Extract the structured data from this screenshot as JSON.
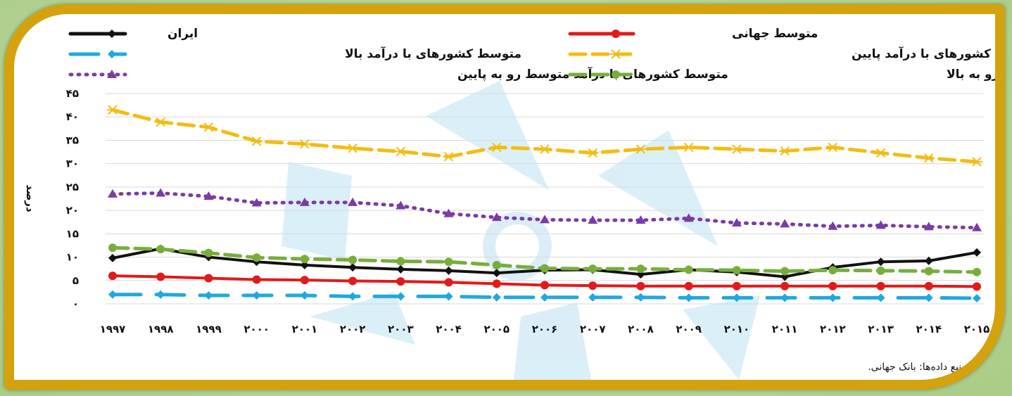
{
  "source_note": "منبع داده‌ها: بانک جهانی.",
  "chart_data": {
    "type": "line",
    "ylabel": "درصد",
    "xlabel": "",
    "ylim": [
      0,
      45
    ],
    "yticks": [
      "۰",
      "۵",
      "۱۰",
      "۱۵",
      "۲۰",
      "۲۵",
      "۳۰",
      "۳۵",
      "۴۰",
      "۴۵"
    ],
    "x": [
      "۱۹۹۷",
      "۱۹۹۸",
      "۱۹۹۹",
      "۲۰۰۰",
      "۲۰۰۱",
      "۲۰۰۲",
      "۲۰۰۳",
      "۲۰۰۴",
      "۲۰۰۵",
      "۲۰۰۶",
      "۲۰۰۷",
      "۲۰۰۸",
      "۲۰۰۹",
      "۲۰۱۰",
      "۲۰۱۱",
      "۲۰۱۲",
      "۲۰۱۳",
      "۲۰۱۴",
      "۲۰۱۵"
    ],
    "grid": true,
    "legend_position": "top",
    "series": [
      {
        "name": "ایران",
        "color": "#111111",
        "marker": "diamond",
        "dash": "solid",
        "values": [
          9.8,
          11.8,
          10.0,
          9.0,
          8.3,
          7.8,
          7.4,
          7.1,
          6.6,
          7.2,
          7.3,
          6.3,
          7.3,
          6.8,
          5.8,
          7.8,
          9.0,
          9.2,
          11.0
        ]
      },
      {
        "name": "متوسط جهانی",
        "color": "#e11a1a",
        "marker": "circle",
        "dash": "solid",
        "values": [
          6.0,
          5.8,
          5.5,
          5.2,
          5.1,
          4.9,
          4.8,
          4.6,
          4.3,
          4.0,
          3.9,
          3.8,
          3.8,
          3.8,
          3.8,
          3.8,
          3.8,
          3.8,
          3.7
        ]
      },
      {
        "name": "متوسط کشورهای با درآمد بالا",
        "color": "#1fa8e0",
        "marker": "diamond",
        "dash": "longdash",
        "values": [
          2.0,
          2.0,
          1.8,
          1.8,
          1.8,
          1.6,
          1.6,
          1.6,
          1.4,
          1.4,
          1.4,
          1.4,
          1.3,
          1.3,
          1.3,
          1.3,
          1.3,
          1.3,
          1.2
        ]
      },
      {
        "name": "متوسط کشورهای با درآمد پایین",
        "color": "#f2bd12",
        "marker": "star",
        "dash": "dash",
        "values": [
          41.5,
          38.9,
          37.8,
          34.8,
          34.2,
          33.3,
          32.6,
          31.5,
          33.5,
          33.1,
          32.3,
          33.1,
          33.5,
          33.1,
          32.7,
          33.5,
          32.3,
          31.2,
          30.4
        ]
      },
      {
        "name": "متوسط کشورهای با درآمد متوسط رو به پایین",
        "color": "#7b3aa6",
        "marker": "triangle",
        "dash": "dot",
        "values": [
          23.5,
          23.7,
          23.0,
          21.6,
          21.7,
          21.7,
          21.0,
          19.3,
          18.5,
          18.0,
          17.9,
          17.9,
          18.3,
          17.3,
          17.1,
          16.6,
          16.8,
          16.5,
          16.3
        ]
      },
      {
        "name": "متوسط کشورهای با درآمد متوسط رو به بالا",
        "color": "#78ad3b",
        "marker": "circle",
        "dash": "dash",
        "values": [
          12.0,
          11.7,
          10.9,
          9.9,
          9.6,
          9.4,
          9.1,
          9.0,
          8.3,
          7.6,
          7.5,
          7.5,
          7.3,
          7.2,
          7.0,
          7.2,
          7.1,
          7.0,
          6.8
        ]
      }
    ]
  }
}
